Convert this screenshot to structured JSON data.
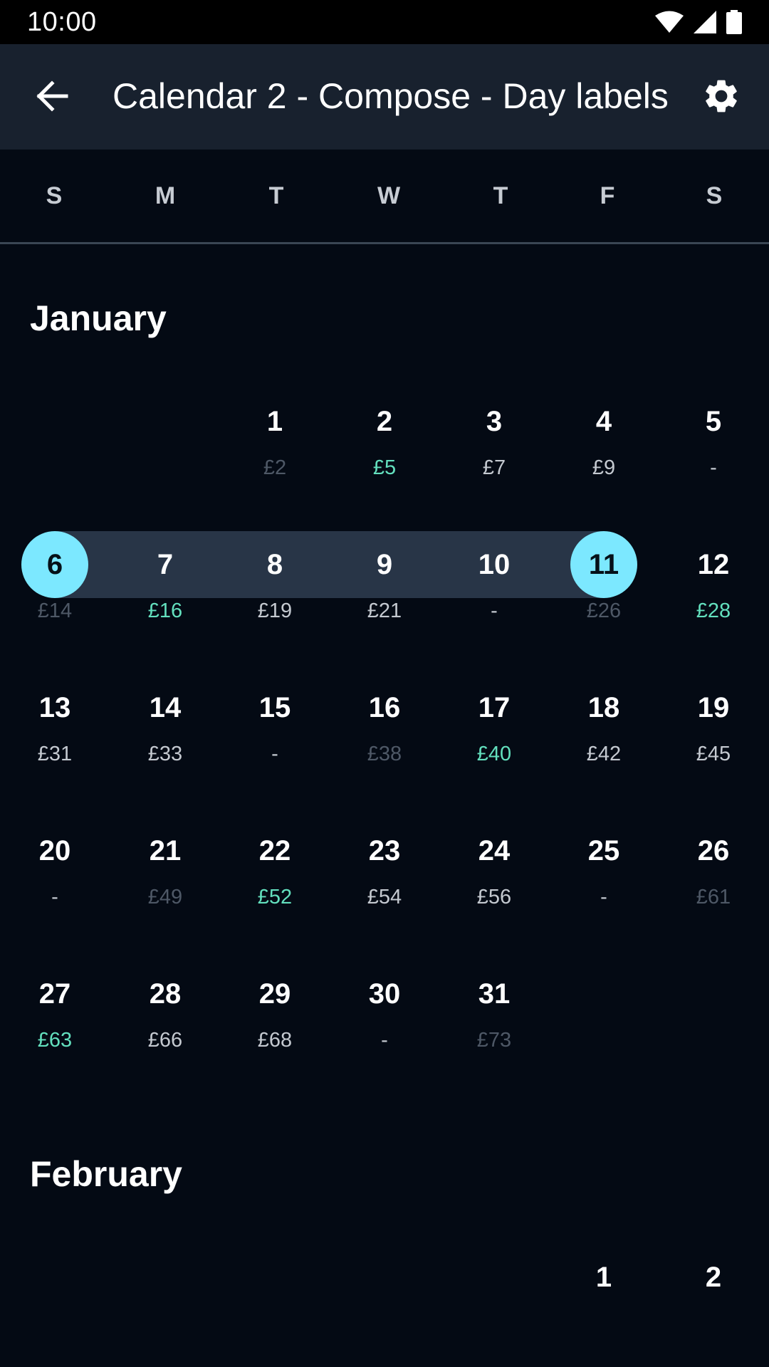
{
  "status_bar": {
    "time": "10:00"
  },
  "app_bar": {
    "title": "Calendar 2 - Compose - Day labels"
  },
  "weekdays": [
    "S",
    "M",
    "T",
    "W",
    "T",
    "F",
    "S"
  ],
  "colors": {
    "background": "#040A14",
    "app_bar": "#18212E",
    "selected_circle": "#7CE8FF",
    "range_band": "#283547",
    "price_green": "#63E0BE",
    "price_normal": "#C4C9D0",
    "price_dim": "#4E5866"
  },
  "months": [
    {
      "name": "January",
      "weeks": [
        [
          null,
          null,
          {
            "day": "1",
            "price": "£2",
            "style": "dim"
          },
          {
            "day": "2",
            "price": "£5",
            "style": "green"
          },
          {
            "day": "3",
            "price": "£7",
            "style": "normal"
          },
          {
            "day": "4",
            "price": "£9",
            "style": "normal"
          },
          {
            "day": "5",
            "price": "-",
            "style": "dash"
          }
        ],
        [
          {
            "day": "6",
            "price": "£14",
            "style": "dim",
            "selected": true
          },
          {
            "day": "7",
            "price": "£16",
            "style": "green",
            "in_range": true
          },
          {
            "day": "8",
            "price": "£19",
            "style": "normal",
            "in_range": true
          },
          {
            "day": "9",
            "price": "£21",
            "style": "normal",
            "in_range": true
          },
          {
            "day": "10",
            "price": "-",
            "style": "dash",
            "in_range": true
          },
          {
            "day": "11",
            "price": "£26",
            "style": "dim",
            "selected": true
          },
          {
            "day": "12",
            "price": "£28",
            "style": "green"
          }
        ],
        [
          {
            "day": "13",
            "price": "£31",
            "style": "normal"
          },
          {
            "day": "14",
            "price": "£33",
            "style": "normal"
          },
          {
            "day": "15",
            "price": "-",
            "style": "dash"
          },
          {
            "day": "16",
            "price": "£38",
            "style": "dim"
          },
          {
            "day": "17",
            "price": "£40",
            "style": "green"
          },
          {
            "day": "18",
            "price": "£42",
            "style": "normal"
          },
          {
            "day": "19",
            "price": "£45",
            "style": "normal"
          }
        ],
        [
          {
            "day": "20",
            "price": "-",
            "style": "dash"
          },
          {
            "day": "21",
            "price": "£49",
            "style": "dim"
          },
          {
            "day": "22",
            "price": "£52",
            "style": "green"
          },
          {
            "day": "23",
            "price": "£54",
            "style": "normal"
          },
          {
            "day": "24",
            "price": "£56",
            "style": "normal"
          },
          {
            "day": "25",
            "price": "-",
            "style": "dash"
          },
          {
            "day": "26",
            "price": "£61",
            "style": "dim"
          }
        ],
        [
          {
            "day": "27",
            "price": "£63",
            "style": "green"
          },
          {
            "day": "28",
            "price": "£66",
            "style": "normal"
          },
          {
            "day": "29",
            "price": "£68",
            "style": "normal"
          },
          {
            "day": "30",
            "price": "-",
            "style": "dash"
          },
          {
            "day": "31",
            "price": "£73",
            "style": "dim"
          },
          null,
          null
        ]
      ]
    },
    {
      "name": "February",
      "weeks": [
        [
          null,
          null,
          null,
          null,
          null,
          {
            "day": "1",
            "price": "",
            "style": "normal"
          },
          {
            "day": "2",
            "price": "",
            "style": "normal"
          }
        ]
      ]
    }
  ]
}
